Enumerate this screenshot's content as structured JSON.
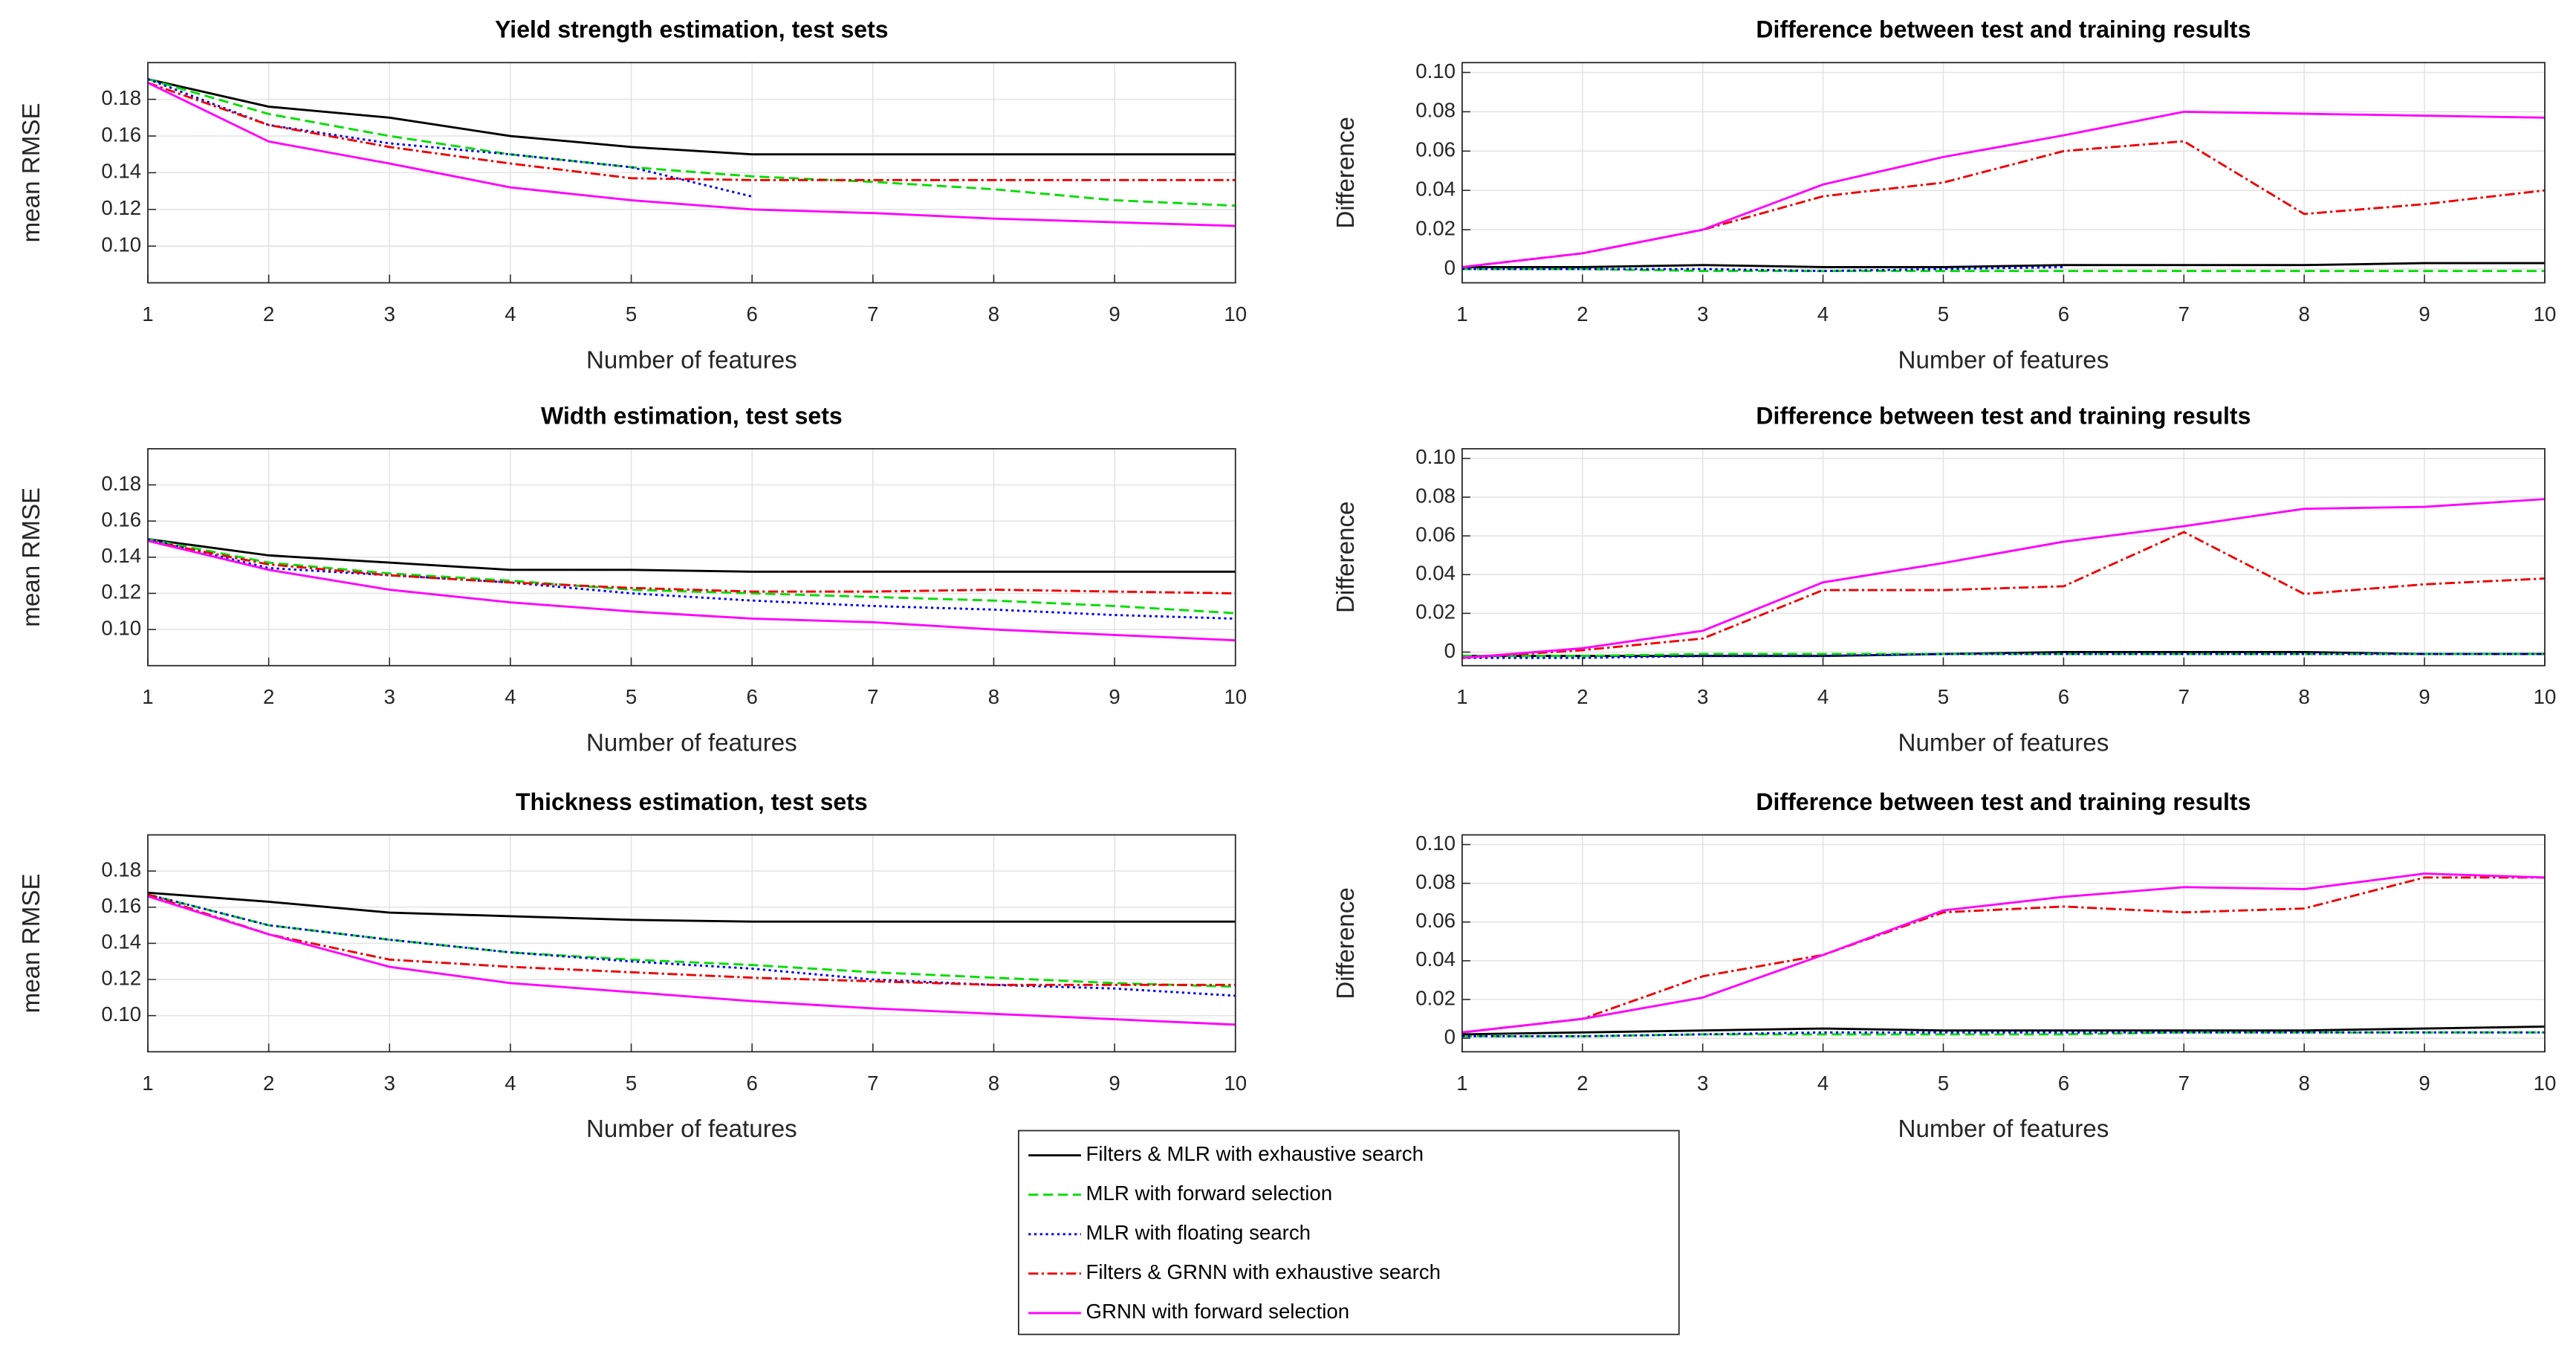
{
  "chart_data": [
    {
      "type": "line",
      "title": "Yield strength estimation, test sets",
      "xlabel": "Number of features",
      "ylabel": "mean RMSE",
      "x": [
        1,
        2,
        3,
        4,
        5,
        6,
        7,
        8,
        9,
        10
      ],
      "xlim": [
        1,
        10
      ],
      "xticks": [
        1,
        2,
        3,
        4,
        5,
        6,
        7,
        8,
        9,
        10
      ],
      "ylim": [
        0.08,
        0.2
      ],
      "yticks": [
        {
          "value": 0.1,
          "label": "0.10"
        },
        {
          "value": 0.12,
          "label": "0.12"
        },
        {
          "value": 0.14,
          "label": "0.14"
        },
        {
          "value": 0.16,
          "label": "0.16"
        },
        {
          "value": 0.18,
          "label": "0.18"
        }
      ],
      "grid": true,
      "series": [
        {
          "name": "Filters & MLR with exhaustive search",
          "color": "#000000",
          "linestyle": "-",
          "values": [
            0.191,
            0.176,
            0.17,
            0.16,
            0.154,
            0.15,
            0.15,
            0.15,
            0.15,
            0.15
          ]
        },
        {
          "name": "MLR with forward selection",
          "color": "#00dd00",
          "linestyle": "--",
          "values": [
            0.191,
            0.172,
            0.16,
            0.15,
            0.143,
            0.138,
            0.135,
            0.131,
            0.125,
            0.122
          ]
        },
        {
          "name": "MLR with floating search",
          "color": "#0000ee",
          "linestyle": ":",
          "values": [
            0.191,
            0.166,
            0.156,
            0.15,
            0.143,
            0.127,
            null,
            null,
            null,
            null
          ]
        },
        {
          "name": "Filters & GRNN with exhaustive search",
          "color": "#ee0000",
          "linestyle": "-.",
          "values": [
            0.189,
            0.166,
            0.154,
            0.145,
            0.137,
            0.136,
            0.136,
            0.136,
            0.136,
            0.136
          ]
        },
        {
          "name": "GRNN with forward selection",
          "color": "#ff00ff",
          "linestyle": "-",
          "values": [
            0.189,
            0.157,
            0.145,
            0.132,
            0.125,
            0.12,
            0.118,
            0.115,
            0.113,
            0.111
          ]
        }
      ]
    },
    {
      "type": "line",
      "title": "Difference between test and training results",
      "xlabel": "Number of features",
      "ylabel": "Difference",
      "x": [
        1,
        2,
        3,
        4,
        5,
        6,
        7,
        8,
        9,
        10
      ],
      "xlim": [
        1,
        10
      ],
      "xticks": [
        1,
        2,
        3,
        4,
        5,
        6,
        7,
        8,
        9,
        10
      ],
      "ylim": [
        -0.007,
        0.105
      ],
      "yticks": [
        0,
        0.02,
        0.04,
        0.06,
        0.08,
        {
          "value": 0.1,
          "label": "0.10"
        }
      ],
      "grid": true,
      "series": [
        {
          "color": "#000000",
          "linestyle": "-",
          "values": [
            0.001,
            0.001,
            0.002,
            0.001,
            0.001,
            0.002,
            0.002,
            0.002,
            0.003,
            0.003
          ]
        },
        {
          "color": "#00dd00",
          "linestyle": "--",
          "values": [
            0,
            0,
            -0.001,
            -0.001,
            -0.001,
            -0.001,
            -0.001,
            -0.001,
            -0.001,
            -0.001
          ]
        },
        {
          "color": "#0000ee",
          "linestyle": ":",
          "values": [
            0,
            0,
            0,
            -0.001,
            0,
            0.001,
            null,
            null,
            null,
            null
          ]
        },
        {
          "color": "#ee0000",
          "linestyle": "-.",
          "values": [
            0.001,
            0.008,
            0.02,
            0.037,
            0.044,
            0.06,
            0.065,
            0.028,
            0.033,
            0.04
          ]
        },
        {
          "color": "#ff00ff",
          "linestyle": "-",
          "values": [
            0.001,
            0.008,
            0.02,
            0.043,
            0.057,
            0.068,
            0.08,
            0.079,
            0.078,
            0.077
          ]
        }
      ]
    },
    {
      "type": "line",
      "title": "Width estimation, test sets",
      "xlabel": "Number of features",
      "ylabel": "mean RMSE",
      "x": [
        1,
        2,
        3,
        4,
        5,
        6,
        7,
        8,
        9,
        10
      ],
      "xlim": [
        1,
        10
      ],
      "xticks": [
        1,
        2,
        3,
        4,
        5,
        6,
        7,
        8,
        9,
        10
      ],
      "ylim": [
        0.08,
        0.2
      ],
      "yticks": [
        {
          "value": 0.1,
          "label": "0.10"
        },
        {
          "value": 0.12,
          "label": "0.12"
        },
        {
          "value": 0.14,
          "label": "0.14"
        },
        {
          "value": 0.16,
          "label": "0.16"
        },
        {
          "value": 0.18,
          "label": "0.18"
        }
      ],
      "grid": true,
      "series": [
        {
          "color": "#000000",
          "linestyle": "-",
          "values": [
            0.15,
            0.141,
            0.137,
            0.133,
            0.133,
            0.132,
            0.132,
            0.132,
            0.132,
            0.132
          ]
        },
        {
          "color": "#00dd00",
          "linestyle": "--",
          "values": [
            0.15,
            0.137,
            0.131,
            0.127,
            0.122,
            0.12,
            0.118,
            0.116,
            0.113,
            0.109
          ]
        },
        {
          "color": "#0000ee",
          "linestyle": ":",
          "values": [
            0.15,
            0.134,
            0.13,
            0.126,
            0.12,
            0.116,
            0.113,
            0.111,
            0.108,
            0.106
          ]
        },
        {
          "color": "#ee0000",
          "linestyle": "-.",
          "values": [
            0.149,
            0.136,
            0.13,
            0.126,
            0.123,
            0.121,
            0.121,
            0.122,
            0.121,
            0.12
          ]
        },
        {
          "color": "#ff00ff",
          "linestyle": "-",
          "values": [
            0.149,
            0.133,
            0.122,
            0.115,
            0.11,
            0.106,
            0.104,
            0.1,
            0.097,
            0.094
          ]
        }
      ]
    },
    {
      "type": "line",
      "title": "Difference between test and training results",
      "xlabel": "Number of features",
      "ylabel": "Difference",
      "x": [
        1,
        2,
        3,
        4,
        5,
        6,
        7,
        8,
        9,
        10
      ],
      "xlim": [
        1,
        10
      ],
      "xticks": [
        1,
        2,
        3,
        4,
        5,
        6,
        7,
        8,
        9,
        10
      ],
      "ylim": [
        -0.007,
        0.105
      ],
      "yticks": [
        0,
        0.02,
        0.04,
        0.06,
        0.08,
        {
          "value": 0.1,
          "label": "0.10"
        }
      ],
      "grid": true,
      "series": [
        {
          "color": "#000000",
          "linestyle": "-",
          "values": [
            -0.002,
            -0.002,
            -0.002,
            -0.002,
            -0.001,
            0,
            0,
            0,
            -0.001,
            -0.001
          ]
        },
        {
          "color": "#00dd00",
          "linestyle": "--",
          "values": [
            -0.002,
            -0.002,
            -0.001,
            -0.001,
            -0.001,
            -0.001,
            -0.001,
            -0.001,
            -0.001,
            -0.001
          ]
        },
        {
          "color": "#0000ee",
          "linestyle": ":",
          "values": [
            -0.003,
            -0.003,
            -0.002,
            -0.002,
            -0.001,
            -0.001,
            -0.001,
            -0.001,
            -0.001,
            -0.001
          ]
        },
        {
          "color": "#ee0000",
          "linestyle": "-.",
          "values": [
            -0.003,
            0.001,
            0.007,
            0.032,
            0.032,
            0.034,
            0.062,
            0.03,
            0.035,
            0.038
          ]
        },
        {
          "color": "#ff00ff",
          "linestyle": "-",
          "values": [
            -0.003,
            0.002,
            0.011,
            0.036,
            0.046,
            0.057,
            0.065,
            0.074,
            0.075,
            0.079
          ]
        }
      ]
    },
    {
      "type": "line",
      "title": "Thickness estimation, test sets",
      "xlabel": "Number of features",
      "ylabel": "mean RMSE",
      "x": [
        1,
        2,
        3,
        4,
        5,
        6,
        7,
        8,
        9,
        10
      ],
      "xlim": [
        1,
        10
      ],
      "xticks": [
        1,
        2,
        3,
        4,
        5,
        6,
        7,
        8,
        9,
        10
      ],
      "ylim": [
        0.08,
        0.2
      ],
      "yticks": [
        {
          "value": 0.1,
          "label": "0.10"
        },
        {
          "value": 0.12,
          "label": "0.12"
        },
        {
          "value": 0.14,
          "label": "0.14"
        },
        {
          "value": 0.16,
          "label": "0.16"
        },
        {
          "value": 0.18,
          "label": "0.18"
        }
      ],
      "grid": true,
      "series": [
        {
          "color": "#000000",
          "linestyle": "-",
          "values": [
            0.168,
            0.163,
            0.157,
            0.155,
            0.153,
            0.152,
            0.152,
            0.152,
            0.152,
            0.152
          ]
        },
        {
          "color": "#00dd00",
          "linestyle": "--",
          "values": [
            0.167,
            0.15,
            0.142,
            0.135,
            0.131,
            0.128,
            0.124,
            0.121,
            0.118,
            0.116
          ]
        },
        {
          "color": "#0000ee",
          "linestyle": ":",
          "values": [
            0.167,
            0.15,
            0.142,
            0.135,
            0.13,
            0.126,
            0.12,
            0.117,
            0.115,
            0.111
          ]
        },
        {
          "color": "#ee0000",
          "linestyle": "-.",
          "values": [
            0.167,
            0.145,
            0.131,
            0.127,
            0.124,
            0.121,
            0.119,
            0.117,
            0.117,
            0.117
          ]
        },
        {
          "color": "#ff00ff",
          "linestyle": "-",
          "values": [
            0.166,
            0.145,
            0.127,
            0.118,
            0.113,
            0.108,
            0.104,
            0.101,
            0.098,
            0.095
          ]
        }
      ]
    },
    {
      "type": "line",
      "title": "Difference between test and training results",
      "xlabel": "Number of features",
      "ylabel": "Difference",
      "x": [
        1,
        2,
        3,
        4,
        5,
        6,
        7,
        8,
        9,
        10
      ],
      "xlim": [
        1,
        10
      ],
      "xticks": [
        1,
        2,
        3,
        4,
        5,
        6,
        7,
        8,
        9,
        10
      ],
      "ylim": [
        -0.007,
        0.105
      ],
      "yticks": [
        0,
        0.02,
        0.04,
        0.06,
        0.08,
        {
          "value": 0.1,
          "label": "0.10"
        }
      ],
      "grid": true,
      "series": [
        {
          "color": "#000000",
          "linestyle": "-",
          "values": [
            0.002,
            0.003,
            0.004,
            0.005,
            0.004,
            0.004,
            0.004,
            0.004,
            0.005,
            0.006
          ]
        },
        {
          "color": "#00dd00",
          "linestyle": "--",
          "values": [
            0.001,
            0.001,
            0.002,
            0.002,
            0.002,
            0.002,
            0.003,
            0.003,
            0.003,
            0.003
          ]
        },
        {
          "color": "#0000ee",
          "linestyle": ":",
          "values": [
            0.001,
            0.001,
            0.002,
            0.003,
            0.003,
            0.003,
            0.003,
            0.003,
            0.003,
            0.003
          ]
        },
        {
          "color": "#ee0000",
          "linestyle": "-.",
          "values": [
            0.003,
            0.01,
            0.032,
            0.043,
            0.065,
            0.068,
            0.065,
            0.067,
            0.083,
            0.083
          ]
        },
        {
          "color": "#ff00ff",
          "linestyle": "-",
          "values": [
            0.003,
            0.01,
            0.021,
            0.043,
            0.066,
            0.073,
            0.078,
            0.077,
            0.085,
            0.083
          ]
        }
      ]
    }
  ]
}
